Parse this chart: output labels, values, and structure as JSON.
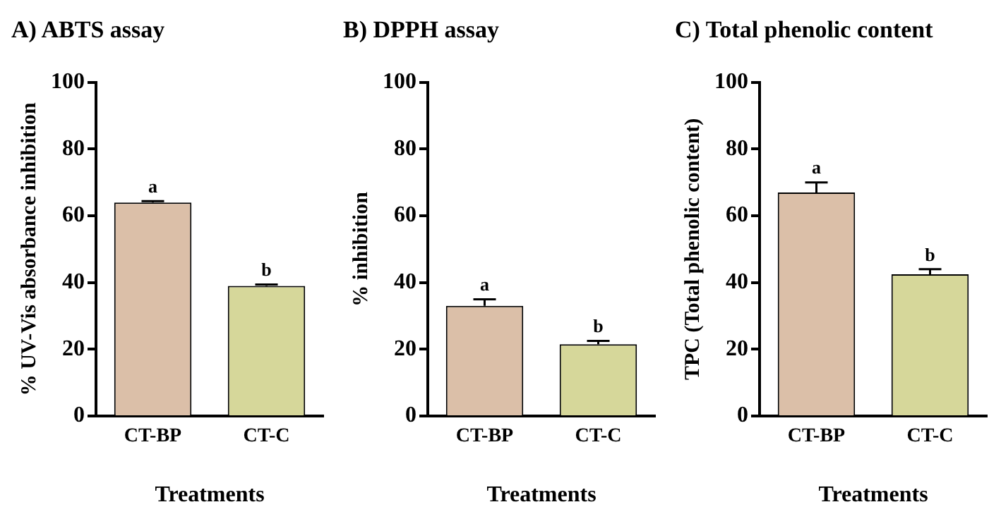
{
  "chart_data": [
    {
      "type": "bar",
      "title": "A) ABTS assay",
      "xlabel": "Treatments",
      "ylabel": "% UV-Vis absorbance inhibition",
      "categories": [
        "CT-BP",
        "CT-C"
      ],
      "values": [
        64,
        39
      ],
      "errors": [
        0.4,
        0.4
      ],
      "colors": [
        "#dbbfa8",
        "#d6d79a"
      ],
      "ylim": [
        0,
        100
      ],
      "yticks": [
        0,
        20,
        40,
        60,
        80,
        100
      ],
      "grid": false,
      "legend": false,
      "annotations": [
        {
          "text": "a",
          "x": "CT-BP",
          "y": 64.4
        },
        {
          "text": "b",
          "x": "CT-C",
          "y": 39.4
        }
      ]
    },
    {
      "type": "bar",
      "title": "B) DPPH assay",
      "xlabel": "Treatments",
      "ylabel": "% inhibition",
      "categories": [
        "CT-BP",
        "CT-C"
      ],
      "values": [
        33,
        21.5
      ],
      "errors": [
        2,
        1
      ],
      "colors": [
        "#dbbfa8",
        "#d6d79a"
      ],
      "ylim": [
        0,
        100
      ],
      "yticks": [
        0,
        20,
        40,
        60,
        80,
        100
      ],
      "grid": false,
      "legend": false,
      "annotations": [
        {
          "text": "a",
          "x": "CT-BP",
          "y": 35
        },
        {
          "text": "b",
          "x": "CT-C",
          "y": 22.5
        }
      ]
    },
    {
      "type": "bar",
      "title": "C) Total phenolic content",
      "xlabel": "Treatments",
      "ylabel": "TPC (Total phenolic content)",
      "categories": [
        "CT-BP",
        "CT-C"
      ],
      "values": [
        67,
        42.5
      ],
      "errors": [
        3,
        1.5
      ],
      "colors": [
        "#dbbfa8",
        "#d6d79a"
      ],
      "ylim": [
        0,
        100
      ],
      "yticks": [
        0,
        20,
        40,
        60,
        80,
        100
      ],
      "grid": false,
      "legend": false,
      "annotations": [
        {
          "text": "a",
          "x": "CT-BP",
          "y": 70
        },
        {
          "text": "b",
          "x": "CT-C",
          "y": 44
        }
      ]
    }
  ]
}
